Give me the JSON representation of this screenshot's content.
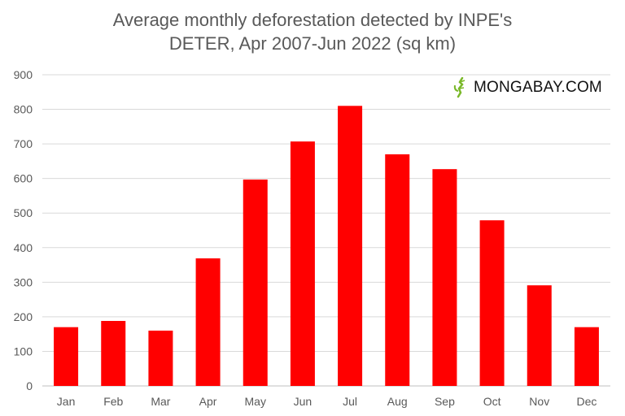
{
  "chart_data": {
    "type": "bar",
    "title_line1": "Average monthly deforestation detected by INPE's",
    "title_line2": "DETER, Apr 2007-Jun 2022 (sq km)",
    "xlabel": "",
    "ylabel": "",
    "categories": [
      "Jan",
      "Feb",
      "Mar",
      "Apr",
      "May",
      "Jun",
      "Jul",
      "Aug",
      "Sep",
      "Oct",
      "Nov",
      "Dec"
    ],
    "values": [
      170,
      188,
      160,
      369,
      597,
      707,
      810,
      670,
      627,
      479,
      291,
      170
    ],
    "ylim": [
      0,
      900
    ],
    "yticks": [
      0,
      100,
      200,
      300,
      400,
      500,
      600,
      700,
      800,
      900
    ],
    "grid": true,
    "bar_color": "#ff0000",
    "grid_color": "#d9d9d9"
  },
  "watermark": {
    "text": "MONGABAY.COM",
    "icon": "gecko-icon",
    "icon_color": "#7ab829"
  }
}
